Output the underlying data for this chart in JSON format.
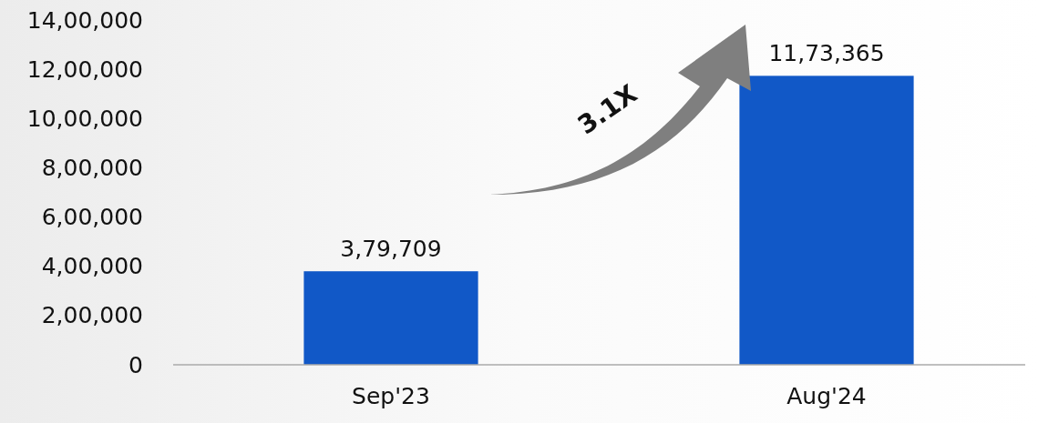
{
  "chart_data": {
    "type": "bar",
    "categories": [
      "Sep'23",
      "Aug'24"
    ],
    "values": [
      379709,
      1173365
    ],
    "color": "#1158c7",
    "value_labels": [
      "3,79,709",
      "11,73,365"
    ],
    "ylim": [
      0,
      1400000
    ],
    "yticks": [
      0,
      {
        "value": 200000,
        "label": "2,00,000"
      },
      {
        "value": 400000,
        "label": "4,00,000"
      },
      {
        "value": 600000,
        "label": "6,00,000"
      },
      {
        "value": 800000,
        "label": "8,00,000"
      },
      {
        "value": 1000000,
        "label": "10,00,000"
      },
      {
        "value": 1200000,
        "label": "12,00,000"
      },
      {
        "value": 1400000,
        "label": "14,00,000"
      }
    ],
    "annotations": [
      "3.1X"
    ],
    "grid": false
  }
}
